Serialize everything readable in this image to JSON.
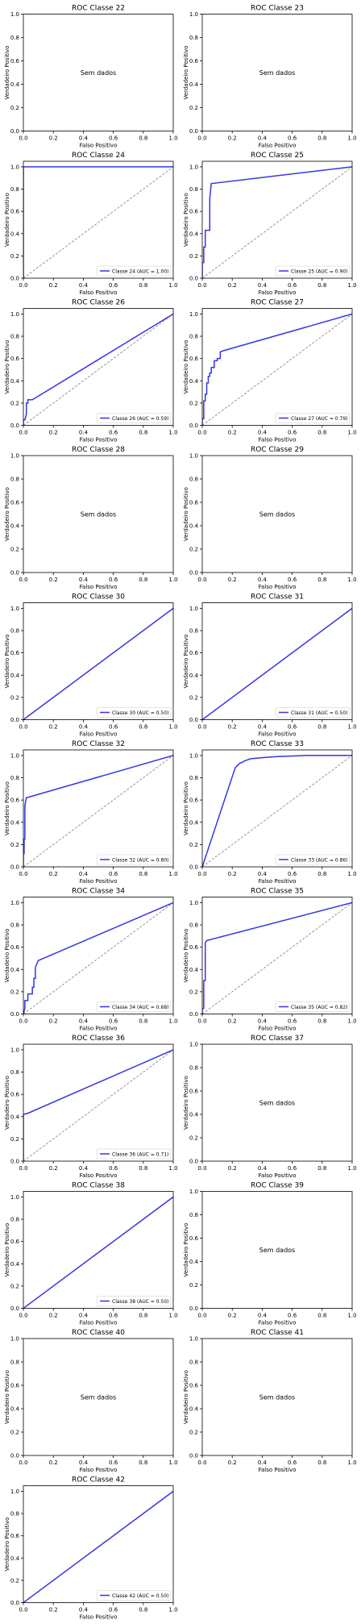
{
  "figure": {
    "no_data_text": "Sem dados",
    "xlabel": "Falso Positivo",
    "ylabel": "Verdadeiro Positivo",
    "tick_labels": [
      "0.0",
      "0.2",
      "0.4",
      "0.6",
      "0.8",
      "1.0"
    ],
    "colors": {
      "roc_line": "#3535e6",
      "diagonal": "#888888",
      "axes": "#000000"
    }
  },
  "chart_data": [
    {
      "type": "line",
      "title": "ROC Classe 22",
      "has_data": false,
      "xlim": [
        0,
        1
      ],
      "ylim": [
        0,
        1
      ],
      "no_data_text": "Sem dados"
    },
    {
      "type": "line",
      "title": "ROC Classe 23",
      "has_data": false,
      "xlim": [
        0,
        1
      ],
      "ylim": [
        0,
        1
      ],
      "no_data_text": "Sem dados"
    },
    {
      "type": "line",
      "title": "ROC Classe 24",
      "has_data": true,
      "xlim": [
        0,
        1
      ],
      "ylim": [
        0,
        1
      ],
      "legend": "Classe 24 (AUC = 1.00)",
      "legend_position": "lower-right",
      "auc": 1.0,
      "x": [
        0,
        0,
        1
      ],
      "y": [
        0,
        1,
        1
      ]
    },
    {
      "type": "line",
      "title": "ROC Classe 25",
      "has_data": true,
      "xlim": [
        0,
        1
      ],
      "ylim": [
        0,
        1
      ],
      "legend": "Classe 25 (AUC = 0.90)",
      "legend_position": "lower-right",
      "auc": 0.9,
      "x": [
        0,
        0,
        0.01,
        0.01,
        0.02,
        0.02,
        0.05,
        0.05,
        0.06,
        1
      ],
      "y": [
        0,
        0.14,
        0.14,
        0.28,
        0.28,
        0.43,
        0.43,
        0.71,
        0.85,
        1
      ]
    },
    {
      "type": "line",
      "title": "ROC Classe 26",
      "has_data": true,
      "xlim": [
        0,
        1
      ],
      "ylim": [
        0,
        1
      ],
      "legend": "Classe 26 (AUC = 0.59)",
      "legend_position": "lower-right",
      "auc": 0.59,
      "x": [
        0,
        0,
        0.01,
        0.02,
        0.02,
        0.03,
        0.03,
        0.06,
        1
      ],
      "y": [
        0,
        0.05,
        0.05,
        0.1,
        0.2,
        0.2,
        0.23,
        0.23,
        1
      ]
    },
    {
      "type": "line",
      "title": "ROC Classe 27",
      "has_data": true,
      "xlim": [
        0,
        1
      ],
      "ylim": [
        0,
        1
      ],
      "legend": "Classe 27 (AUC = 0.79)",
      "legend_position": "lower-right",
      "auc": 0.79,
      "x": [
        0,
        0,
        0.01,
        0.01,
        0.02,
        0.02,
        0.03,
        0.03,
        0.04,
        0.04,
        0.05,
        0.05,
        0.06,
        0.06,
        0.08,
        0.08,
        0.1,
        0.1,
        0.12,
        0.12,
        0.14,
        1
      ],
      "y": [
        0,
        0.06,
        0.06,
        0.22,
        0.22,
        0.28,
        0.28,
        0.38,
        0.38,
        0.44,
        0.44,
        0.47,
        0.47,
        0.52,
        0.52,
        0.58,
        0.58,
        0.6,
        0.6,
        0.66,
        0.67,
        1
      ]
    },
    {
      "type": "line",
      "title": "ROC Classe 28",
      "has_data": false,
      "xlim": [
        0,
        1
      ],
      "ylim": [
        0,
        1
      ],
      "no_data_text": "Sem dados"
    },
    {
      "type": "line",
      "title": "ROC Classe 29",
      "has_data": false,
      "xlim": [
        0,
        1
      ],
      "ylim": [
        0,
        1
      ],
      "no_data_text": "Sem dados"
    },
    {
      "type": "line",
      "title": "ROC Classe 30",
      "has_data": true,
      "xlim": [
        0,
        1
      ],
      "ylim": [
        0,
        1
      ],
      "legend": "Classe 30 (AUC = 0.50)",
      "legend_position": "lower-right",
      "auc": 0.5,
      "x": [
        0,
        1
      ],
      "y": [
        0,
        1
      ]
    },
    {
      "type": "line",
      "title": "ROC Classe 31",
      "has_data": true,
      "xlim": [
        0,
        1
      ],
      "ylim": [
        0,
        1
      ],
      "legend": "Classe 31 (AUC = 0.50)",
      "legend_position": "lower-right",
      "auc": 0.5,
      "x": [
        0,
        1
      ],
      "y": [
        0,
        1
      ]
    },
    {
      "type": "line",
      "title": "ROC Classe 32",
      "has_data": true,
      "xlim": [
        0,
        1
      ],
      "ylim": [
        0,
        1
      ],
      "legend": "Classe 32 (AUC = 0.80)",
      "legend_position": "lower-right",
      "auc": 0.8,
      "x": [
        0,
        0,
        0.005,
        0.005,
        0.01,
        0.01,
        0.02,
        1
      ],
      "y": [
        0,
        0.12,
        0.12,
        0.25,
        0.25,
        0.55,
        0.62,
        1
      ]
    },
    {
      "type": "line",
      "title": "ROC Classe 33",
      "has_data": true,
      "xlim": [
        0,
        1
      ],
      "ylim": [
        0,
        1
      ],
      "legend": "Classe 33 (AUC = 0.86)",
      "legend_position": "lower-right",
      "auc": 0.86,
      "x": [
        0,
        0.22,
        0.25,
        0.27,
        0.28,
        0.3,
        0.32,
        0.4,
        0.5,
        0.7,
        1
      ],
      "y": [
        0,
        0.89,
        0.93,
        0.94,
        0.95,
        0.96,
        0.97,
        0.98,
        0.99,
        1.0,
        1
      ]
    },
    {
      "type": "line",
      "title": "ROC Classe 34",
      "has_data": true,
      "xlim": [
        0,
        1
      ],
      "ylim": [
        0,
        1
      ],
      "legend": "Classe 34 (AUC = 0.68)",
      "legend_position": "lower-right",
      "auc": 0.68,
      "x": [
        0,
        0.01,
        0.01,
        0.03,
        0.03,
        0.06,
        0.06,
        0.07,
        0.07,
        0.08,
        0.08,
        0.1,
        1
      ],
      "y": [
        0,
        0.05,
        0.12,
        0.12,
        0.18,
        0.18,
        0.24,
        0.24,
        0.32,
        0.32,
        0.42,
        0.48,
        1
      ]
    },
    {
      "type": "line",
      "title": "ROC Classe 35",
      "has_data": true,
      "xlim": [
        0,
        1
      ],
      "ylim": [
        0,
        1
      ],
      "legend": "Classe 35 (AUC = 0.82)",
      "legend_position": "lower-right",
      "auc": 0.82,
      "x": [
        0,
        0,
        0.01,
        0.01,
        0.02,
        0.02,
        0.03,
        1
      ],
      "y": [
        0,
        0.05,
        0.05,
        0.3,
        0.3,
        0.64,
        0.66,
        1
      ]
    },
    {
      "type": "line",
      "title": "ROC Classe 36",
      "has_data": true,
      "xlim": [
        0,
        1
      ],
      "ylim": [
        0,
        1
      ],
      "legend": "Classe 36 (AUC = 0.71)",
      "legend_position": "lower-right",
      "auc": 0.71,
      "x": [
        0,
        0,
        0.03,
        1
      ],
      "y": [
        0,
        0.42,
        0.43,
        1
      ]
    },
    {
      "type": "line",
      "title": "ROC Classe 37",
      "has_data": false,
      "xlim": [
        0,
        1
      ],
      "ylim": [
        0,
        1
      ],
      "no_data_text": "Sem dados"
    },
    {
      "type": "line",
      "title": "ROC Classe 38",
      "has_data": true,
      "xlim": [
        0,
        1
      ],
      "ylim": [
        0,
        1
      ],
      "legend": "Classe 38 (AUC = 0.50)",
      "legend_position": "lower-right",
      "auc": 0.5,
      "x": [
        0,
        1
      ],
      "y": [
        0,
        1
      ]
    },
    {
      "type": "line",
      "title": "ROC Classe 39",
      "has_data": false,
      "xlim": [
        0,
        1
      ],
      "ylim": [
        0,
        1
      ],
      "no_data_text": "Sem dados"
    },
    {
      "type": "line",
      "title": "ROC Classe 40",
      "has_data": false,
      "xlim": [
        0,
        1
      ],
      "ylim": [
        0,
        1
      ],
      "no_data_text": "Sem dados"
    },
    {
      "type": "line",
      "title": "ROC Classe 41",
      "has_data": false,
      "xlim": [
        0,
        1
      ],
      "ylim": [
        0,
        1
      ],
      "no_data_text": "Sem dados"
    },
    {
      "type": "line",
      "title": "ROC Classe 42",
      "has_data": true,
      "xlim": [
        0,
        1
      ],
      "ylim": [
        0,
        1
      ],
      "legend": "Classe 42 (AUC = 0.50)",
      "legend_position": "lower-right",
      "auc": 0.5,
      "x": [
        0,
        1
      ],
      "y": [
        0,
        1
      ]
    }
  ]
}
